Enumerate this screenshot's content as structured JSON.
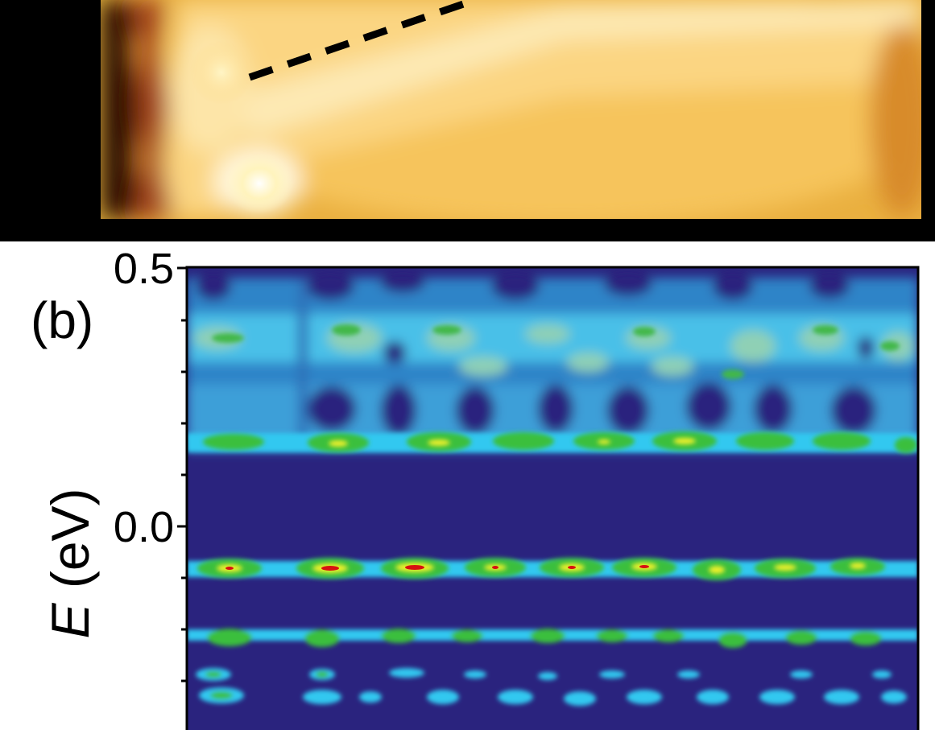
{
  "figure": {
    "panel_b_label": "(b)",
    "y_axis": {
      "label_var": "E",
      "label_unit": " (eV)",
      "ticks": [
        "0.5",
        "0.0"
      ]
    }
  },
  "chart_data": {
    "type": "heatmap",
    "title": "",
    "xlabel": "",
    "ylabel": "E (eV)",
    "ylim": [
      -0.38,
      0.5
    ],
    "y_tick_labels": [
      "0.5",
      "0.0"
    ],
    "gap_region_eV": [
      -0.06,
      0.14
    ],
    "bands": [
      {
        "name": "",
        "energy_eV": 0.37,
        "intensity": "medium"
      },
      {
        "name": "",
        "energy_eV": 0.16,
        "intensity": "high"
      },
      {
        "name": "",
        "energy_eV": -0.08,
        "intensity": "highest"
      },
      {
        "name": "",
        "energy_eV": -0.23,
        "intensity": "medium"
      },
      {
        "name": "",
        "energy_eV": -0.31,
        "intensity": "low"
      },
      {
        "name": "",
        "energy_eV": -0.35,
        "intensity": "low"
      }
    ],
    "colormap": [
      "#2a237e",
      "#33c8f0",
      "#37c23a",
      "#f2ee2a",
      "#d81010"
    ]
  }
}
